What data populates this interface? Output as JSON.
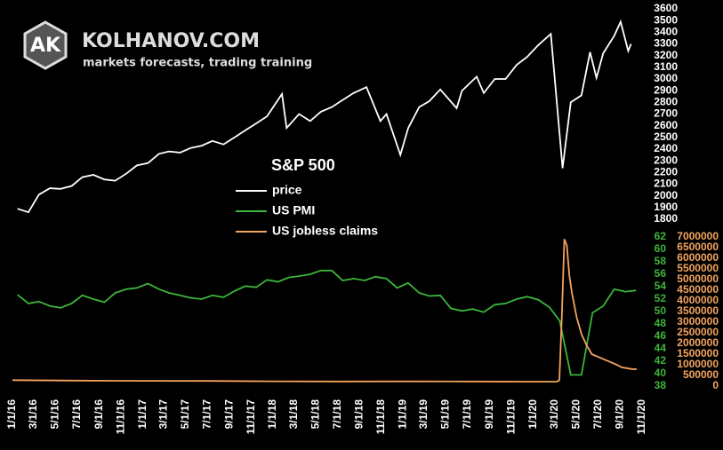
{
  "brand": {
    "logo": "AK",
    "name": "KOLHANOV.COM",
    "tagline": "markets forecasts, trading training"
  },
  "chart_data": {
    "type": "line",
    "title": "S&P 500",
    "xlim": [
      "2016-01-01",
      "2020-11-01"
    ],
    "xticks": [
      {
        "value": "2016-01-01",
        "label": "1/1/16"
      },
      {
        "value": "2016-03-01",
        "label": "3/1/16"
      },
      {
        "value": "2016-05-01",
        "label": "5/1/16"
      },
      {
        "value": "2016-07-01",
        "label": "7/1/16"
      },
      {
        "value": "2016-09-01",
        "label": "9/1/16"
      },
      {
        "value": "2016-11-01",
        "label": "11/1/16"
      },
      {
        "value": "2017-01-01",
        "label": "1/1/17"
      },
      {
        "value": "2017-03-01",
        "label": "3/1/17"
      },
      {
        "value": "2017-05-01",
        "label": "5/1/17"
      },
      {
        "value": "2017-07-01",
        "label": "7/1/17"
      },
      {
        "value": "2017-09-01",
        "label": "9/1/17"
      },
      {
        "value": "2017-11-01",
        "label": "11/1/17"
      },
      {
        "value": "2018-01-01",
        "label": "1/1/18"
      },
      {
        "value": "2018-03-01",
        "label": "3/1/18"
      },
      {
        "value": "2018-05-01",
        "label": "5/1/18"
      },
      {
        "value": "2018-07-01",
        "label": "7/1/18"
      },
      {
        "value": "2018-09-01",
        "label": "9/1/18"
      },
      {
        "value": "2018-11-01",
        "label": "11/1/18"
      },
      {
        "value": "2019-01-01",
        "label": "1/1/19"
      },
      {
        "value": "2019-03-01",
        "label": "3/1/19"
      },
      {
        "value": "2019-05-01",
        "label": "5/1/19"
      },
      {
        "value": "2019-07-01",
        "label": "7/1/19"
      },
      {
        "value": "2019-09-01",
        "label": "9/1/19"
      },
      {
        "value": "2019-11-01",
        "label": "11/1/19"
      },
      {
        "value": "2020-01-01",
        "label": "1/1/20"
      },
      {
        "value": "2020-03-01",
        "label": "3/1/20"
      },
      {
        "value": "2020-05-01",
        "label": "5/1/20"
      },
      {
        "value": "2020-07-01",
        "label": "7/1/20"
      },
      {
        "value": "2020-09-01",
        "label": "9/1/20"
      },
      {
        "value": "2020-11-01",
        "label": "11/1/20"
      }
    ],
    "ylim": [
      1800,
      3600
    ],
    "yticks": [
      1800,
      1900,
      2000,
      2100,
      2200,
      2300,
      2400,
      2500,
      2600,
      2700,
      2800,
      2900,
      3000,
      3100,
      3200,
      3300,
      3400,
      3500,
      3600
    ],
    "y2lim": [
      38,
      62
    ],
    "y2ticks": [
      38,
      40,
      42,
      44,
      46,
      48,
      50,
      52,
      54,
      56,
      58,
      60,
      62
    ],
    "y3lim": [
      0,
      7000000
    ],
    "y3ticks": [
      0,
      500000,
      1000000,
      1500000,
      2000000,
      2500000,
      3000000,
      3500000,
      4000000,
      4500000,
      5000000,
      5500000,
      6000000,
      6500000,
      7000000
    ],
    "series": [
      {
        "name": "price",
        "color": "#ffffff",
        "axis": "y",
        "x": [
          "2016-01-15",
          "2016-02-15",
          "2016-03-15",
          "2016-04-15",
          "2016-05-15",
          "2016-06-15",
          "2016-07-15",
          "2016-08-15",
          "2016-09-15",
          "2016-10-15",
          "2016-11-15",
          "2016-12-15",
          "2017-01-15",
          "2017-02-15",
          "2017-03-15",
          "2017-04-15",
          "2017-05-15",
          "2017-06-15",
          "2017-07-15",
          "2017-08-15",
          "2017-09-15",
          "2017-10-15",
          "2017-11-15",
          "2017-12-15",
          "2018-01-26",
          "2018-02-08",
          "2018-03-15",
          "2018-04-15",
          "2018-05-15",
          "2018-06-15",
          "2018-07-15",
          "2018-08-15",
          "2018-09-20",
          "2018-10-29",
          "2018-11-15",
          "2018-12-24",
          "2019-01-15",
          "2019-02-15",
          "2019-03-15",
          "2019-04-15",
          "2019-05-31",
          "2019-06-15",
          "2019-07-26",
          "2019-08-15",
          "2019-09-15",
          "2019-10-15",
          "2019-11-15",
          "2019-12-15",
          "2020-01-15",
          "2020-02-19",
          "2020-03-23",
          "2020-04-15",
          "2020-05-15",
          "2020-06-08",
          "2020-06-26",
          "2020-07-15",
          "2020-08-15",
          "2020-09-02",
          "2020-09-23",
          "2020-10-01"
        ],
        "values": [
          1890,
          1860,
          2010,
          2065,
          2060,
          2085,
          2160,
          2180,
          2140,
          2130,
          2190,
          2260,
          2280,
          2360,
          2380,
          2370,
          2410,
          2430,
          2470,
          2440,
          2500,
          2560,
          2620,
          2680,
          2872,
          2581,
          2700,
          2640,
          2720,
          2760,
          2820,
          2880,
          2930,
          2640,
          2700,
          2351,
          2580,
          2760,
          2810,
          2910,
          2750,
          2900,
          3020,
          2880,
          3000,
          3000,
          3120,
          3190,
          3290,
          3386,
          2237,
          2800,
          2860,
          3230,
          3010,
          3220,
          3370,
          3490,
          3240,
          3300
        ]
      },
      {
        "name": "US PMI",
        "color": "#3cb53c",
        "axis": "y2",
        "x": [
          "2016-01-15",
          "2016-02-15",
          "2016-03-15",
          "2016-04-15",
          "2016-05-15",
          "2016-06-15",
          "2016-07-15",
          "2016-08-15",
          "2016-09-15",
          "2016-10-15",
          "2016-11-15",
          "2016-12-15",
          "2017-01-15",
          "2017-02-15",
          "2017-03-15",
          "2017-04-15",
          "2017-05-15",
          "2017-06-15",
          "2017-07-15",
          "2017-08-15",
          "2017-09-15",
          "2017-10-15",
          "2017-11-15",
          "2017-12-15",
          "2018-01-15",
          "2018-02-15",
          "2018-03-15",
          "2018-04-15",
          "2018-05-15",
          "2018-06-15",
          "2018-07-15",
          "2018-08-15",
          "2018-09-15",
          "2018-10-15",
          "2018-11-15",
          "2018-12-15",
          "2019-01-15",
          "2019-02-15",
          "2019-03-15",
          "2019-04-15",
          "2019-05-15",
          "2019-06-15",
          "2019-07-15",
          "2019-08-15",
          "2019-09-15",
          "2019-10-15",
          "2019-11-15",
          "2019-12-15",
          "2020-01-15",
          "2020-02-15",
          "2020-03-15",
          "2020-04-15",
          "2020-05-15",
          "2020-06-15",
          "2020-07-15",
          "2020-08-15",
          "2020-09-15",
          "2020-10-15"
        ],
        "values": [
          52.7,
          51.3,
          51.6,
          50.9,
          50.6,
          51.3,
          52.6,
          52.0,
          51.5,
          53.0,
          53.6,
          53.8,
          54.5,
          53.6,
          53.0,
          52.6,
          52.2,
          52.0,
          52.6,
          52.3,
          53.3,
          54.1,
          53.9,
          55.1,
          54.8,
          55.5,
          55.7,
          56.0,
          56.6,
          56.6,
          55.0,
          55.3,
          55.0,
          55.6,
          55.3,
          53.8,
          54.6,
          53.0,
          52.5,
          52.6,
          50.5,
          50.1,
          50.4,
          49.9,
          51.1,
          51.3,
          52.0,
          52.4,
          51.9,
          50.7,
          48.5,
          39.8,
          39.8,
          49.8,
          50.9,
          53.6,
          53.2,
          53.4
        ]
      },
      {
        "name": "US jobless claims",
        "color": "#f4a460",
        "axis": "y3",
        "x": [
          "2016-01-01",
          "2016-07-01",
          "2017-01-01",
          "2017-07-01",
          "2018-01-01",
          "2018-07-01",
          "2019-01-01",
          "2019-07-01",
          "2020-01-01",
          "2020-03-07",
          "2020-03-14",
          "2020-03-21",
          "2020-03-28",
          "2020-04-04",
          "2020-04-11",
          "2020-04-18",
          "2020-04-25",
          "2020-05-02",
          "2020-05-16",
          "2020-05-30",
          "2020-06-13",
          "2020-06-27",
          "2020-07-11",
          "2020-07-25",
          "2020-08-08",
          "2020-08-22",
          "2020-09-05",
          "2020-09-19",
          "2020-10-03",
          "2020-10-17"
        ],
        "values": [
          280000,
          260000,
          245000,
          240000,
          225000,
          215000,
          220000,
          215000,
          210000,
          210000,
          280000,
          3300000,
          6900000,
          6600000,
          5200000,
          4400000,
          3800000,
          3200000,
          2400000,
          1900000,
          1500000,
          1400000,
          1300000,
          1200000,
          1100000,
          1000000,
          880000,
          840000,
          800000,
          790000
        ]
      }
    ]
  }
}
